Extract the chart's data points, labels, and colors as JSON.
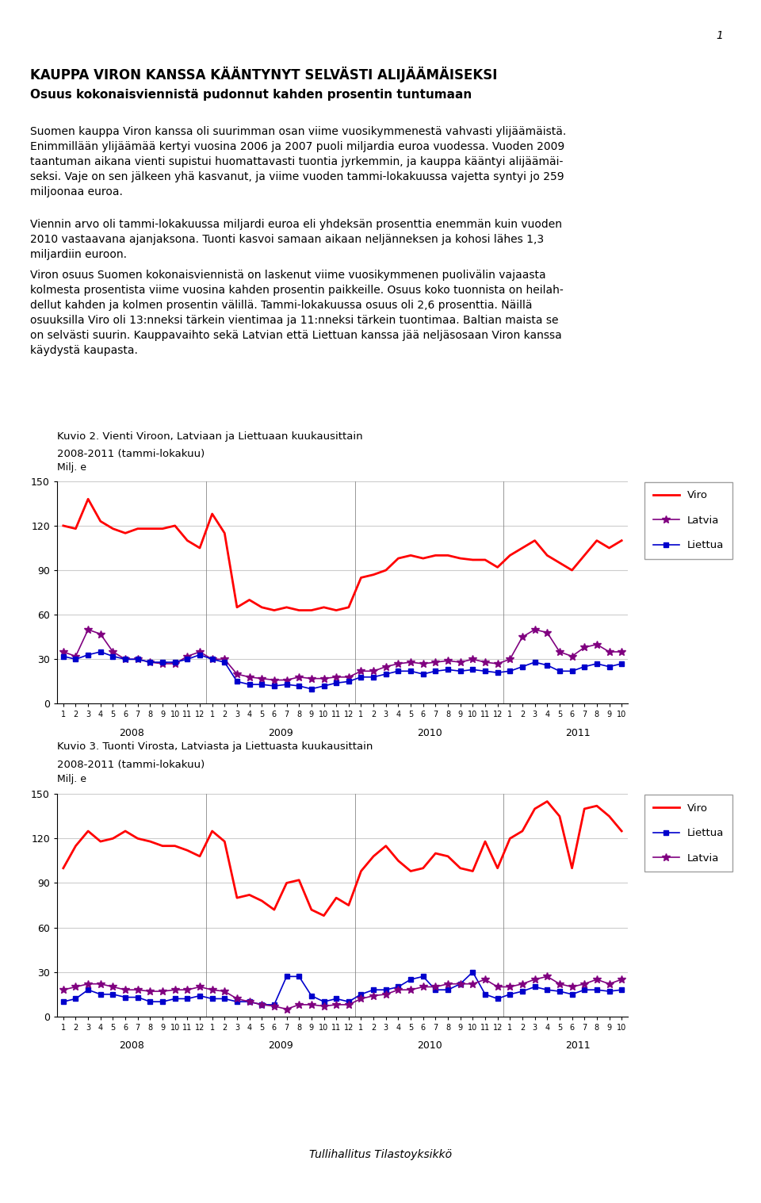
{
  "title_main": "KAUPPA VIRON KANSSA KÄÄNTYNYT SELVÄSTI ALIJÄÄMÄISEKSI",
  "subtitle_main": "Osuus kokonaisviennistä pudonnut kahden prosentin tuntumaan",
  "para1": "Suomen kauppa Viron kanssa oli suurimman osan viime vuosikymmenestä vahvasti ylijäämäistä.\nEnimmillään ylijäämää kertyi vuosina 2006 ja 2007 puoli miljardia euroa vuodessa. Vuoden 2009\ntaantuman aikana vienti supistui huomattavasti tuontia jyrkemmin, ja kauppa kääntyi alijäämäi-\nseksi. Vaje on sen jälkeen yhä kasvanut, ja viime vuoden tammi-lokakuussa vajetta syntyi jo 259\nmiljoonaa euroa.",
  "para2": "Viennin arvo oli tammi-lokakuussa miljardi euroa eli yhdeksän prosenttia enemmän kuin vuoden\n2010 vastaavana ajanjaksona. Tuonti kasvoi samaan aikaan neljänneksen ja kohosi lähes 1,3\nmiljardiin euroon.",
  "para3": "Viron osuus Suomen kokonaisviennistä on laskenut viime vuosikymmenen puolivälin vajaasta\nkolmesta prosentista viime vuosina kahden prosentin paikkeille. Osuus koko tuonnista on heilah-\ndellut kahden ja kolmen prosentin välillä. Tammi-lokakuussa osuus oli 2,6 prosenttia. Näillä\nosuuksilla Viro oli 13:nneksi tärkein vientimaa ja 11:nneksi tärkein tuontimaa. Baltian maista se\non selvästi suurin. Kauppavaihto sekä Latvian että Liettuan kanssa jää neljäsosaan Viron kanssa\nkäydystä kaupasta.",
  "chart1_title_line1": "Kuvio 2. Vienti Viroon, Latviaan ja Liettuaan kuukausittain",
  "chart1_title_line2": "2008-2011 (tammi-lokakuu)",
  "chart1_ylabel": "Milj. e",
  "chart1_ylim": [
    0,
    150
  ],
  "chart1_yticks": [
    0,
    30,
    60,
    90,
    120,
    150
  ],
  "chart2_title_line1": "Kuvio 3. Tuonti Virosta, Latviasta ja Liettuasta kuukausittain",
  "chart2_title_line2": "2008-2011 (tammi-lokakuu)",
  "chart2_ylabel": "Milj. e",
  "chart2_ylim": [
    0,
    150
  ],
  "chart2_yticks": [
    0,
    30,
    60,
    90,
    120,
    150
  ],
  "year_labels": [
    "2008",
    "2009",
    "2010",
    "2011"
  ],
  "x_tick_labels": [
    "1",
    "2",
    "3",
    "4",
    "5",
    "6",
    "7",
    "8",
    "9",
    "10",
    "11",
    "12",
    "1",
    "2",
    "3",
    "4",
    "5",
    "6",
    "7",
    "8",
    "9",
    "10",
    "11",
    "12",
    "1",
    "2",
    "3",
    "4",
    "5",
    "6",
    "7",
    "8",
    "9",
    "10",
    "11",
    "12",
    "1",
    "2",
    "3",
    "4",
    "5",
    "6",
    "7",
    "8",
    "9",
    "10"
  ],
  "viro_export": [
    120,
    118,
    138,
    123,
    118,
    115,
    118,
    118,
    118,
    120,
    110,
    105,
    128,
    115,
    65,
    70,
    65,
    63,
    65,
    63,
    63,
    65,
    63,
    65,
    85,
    87,
    90,
    98,
    100,
    98,
    100,
    100,
    98,
    97,
    97,
    92,
    100,
    105,
    110,
    100,
    95,
    90,
    100,
    110,
    105,
    110
  ],
  "latvia_export": [
    35,
    32,
    50,
    47,
    35,
    30,
    30,
    28,
    27,
    27,
    32,
    35,
    30,
    30,
    20,
    18,
    17,
    16,
    16,
    18,
    17,
    17,
    18,
    18,
    22,
    22,
    25,
    27,
    28,
    27,
    28,
    29,
    28,
    30,
    28,
    27,
    30,
    45,
    50,
    48,
    35,
    32,
    38,
    40,
    35,
    35
  ],
  "liettua_export": [
    32,
    30,
    33,
    35,
    32,
    30,
    30,
    28,
    28,
    28,
    30,
    33,
    30,
    28,
    15,
    13,
    13,
    12,
    13,
    12,
    10,
    12,
    14,
    15,
    18,
    18,
    20,
    22,
    22,
    20,
    22,
    23,
    22,
    23,
    22,
    21,
    22,
    25,
    28,
    26,
    22,
    22,
    25,
    27,
    25,
    27
  ],
  "viro_import": [
    100,
    115,
    125,
    118,
    120,
    125,
    120,
    118,
    115,
    115,
    112,
    108,
    125,
    118,
    80,
    82,
    78,
    72,
    90,
    92,
    72,
    68,
    80,
    75,
    98,
    108,
    115,
    105,
    98,
    100,
    110,
    108,
    100,
    98,
    118,
    100,
    120,
    125,
    140,
    145,
    135,
    100,
    140,
    142,
    135,
    125
  ],
  "liettua_import": [
    10,
    12,
    18,
    15,
    15,
    13,
    13,
    10,
    10,
    12,
    12,
    14,
    12,
    12,
    10,
    10,
    8,
    8,
    27,
    27,
    14,
    10,
    12,
    10,
    15,
    18,
    18,
    20,
    25,
    27,
    18,
    18,
    22,
    30,
    15,
    12,
    15,
    17,
    20,
    18,
    17,
    15,
    18,
    18,
    17,
    18
  ],
  "latvia_import": [
    18,
    20,
    22,
    22,
    20,
    18,
    18,
    17,
    17,
    18,
    18,
    20,
    18,
    17,
    12,
    10,
    8,
    7,
    5,
    8,
    8,
    7,
    8,
    8,
    12,
    14,
    15,
    18,
    18,
    20,
    20,
    22,
    22,
    22,
    25,
    20,
    20,
    22,
    25,
    27,
    22,
    20,
    22,
    25,
    22,
    25
  ],
  "footer": "Tullihallitus Tilastoyksikkö",
  "page_number": "1"
}
